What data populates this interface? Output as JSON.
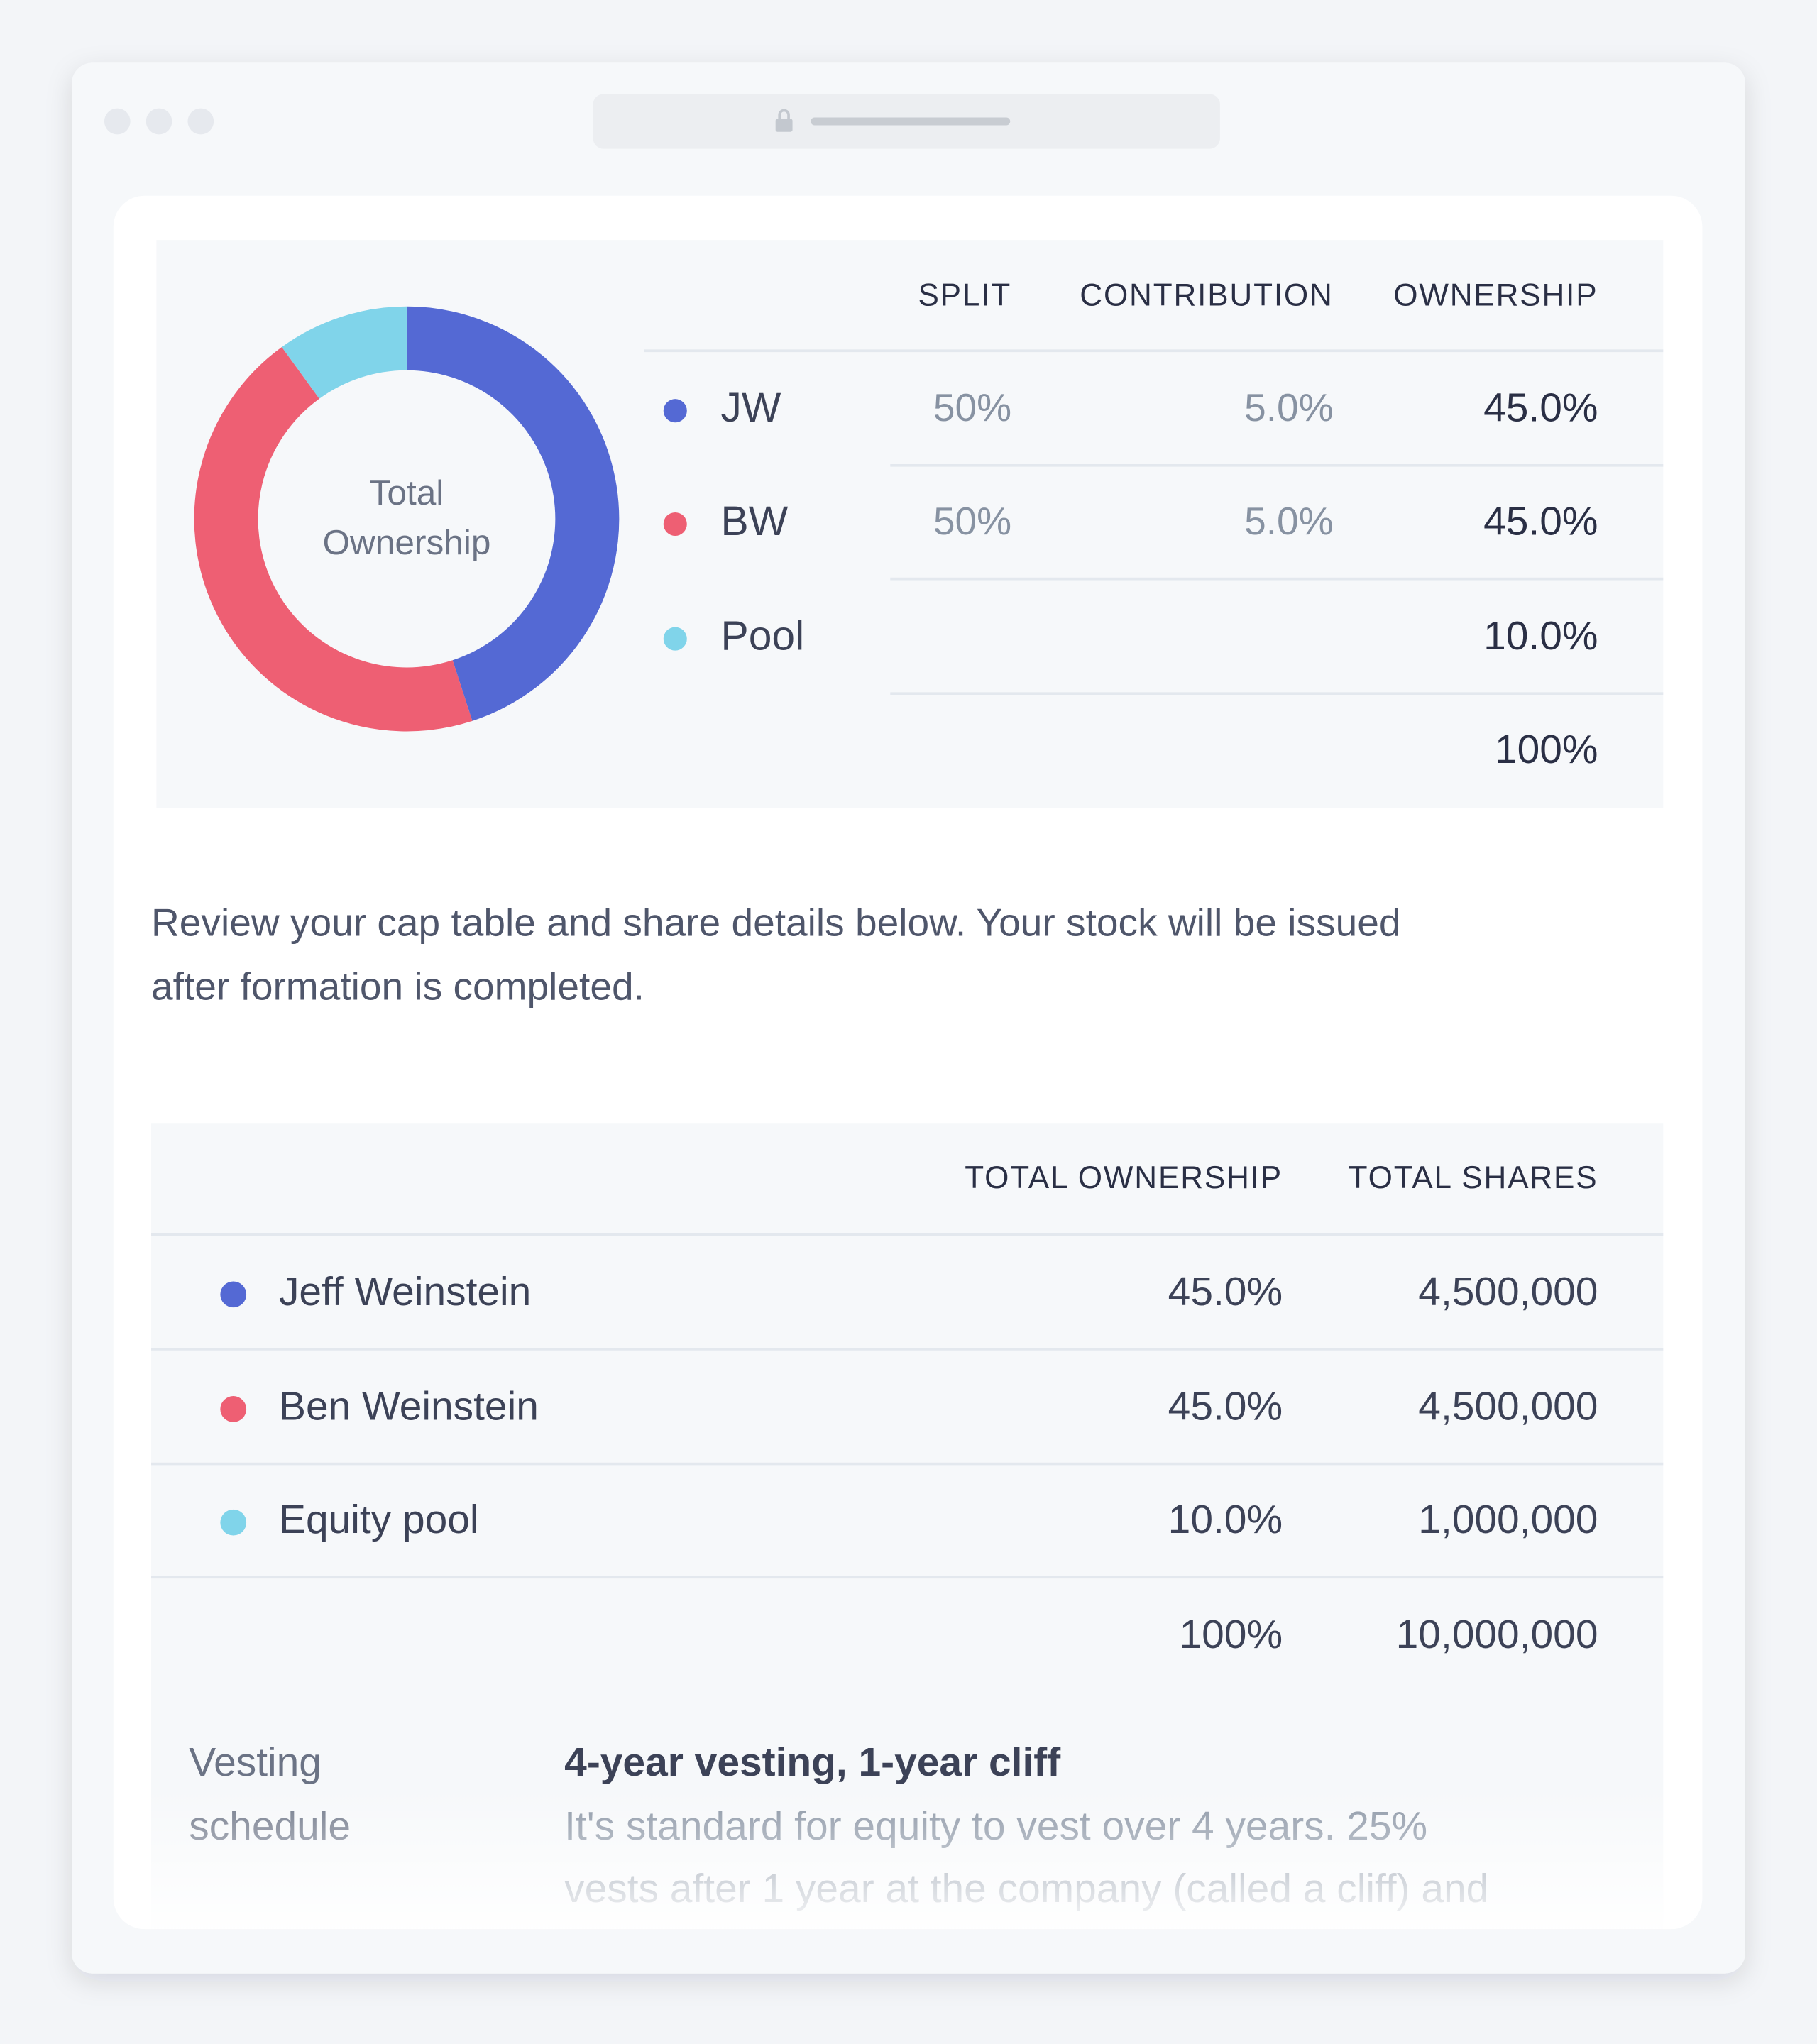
{
  "chart_data": {
    "type": "pie",
    "center_label": [
      "Total",
      "Ownership"
    ],
    "categories": [
      "JW",
      "BW",
      "Pool"
    ],
    "values": [
      45,
      45,
      10
    ],
    "value_labels": [
      "45.0%",
      "45.0%",
      "10.0%"
    ],
    "colors": [
      "#5469d4",
      "#ee5f73",
      "#80d4ea"
    ]
  },
  "summary_table": {
    "headers": [
      "SPLIT",
      "CONTRIBUTION",
      "OWNERSHIP"
    ],
    "rows": [
      [
        "50%",
        "5.0%"
      ],
      [
        "50%",
        "5.0%"
      ],
      []
    ],
    "total": "100%"
  },
  "intro": [
    "Review your cap table and share details below. Your stock will be issued",
    "after formation is completed."
  ],
  "cap_table": {
    "headers": [
      "TOTAL OWNERSHIP",
      "TOTAL SHARES"
    ],
    "rows": [
      [
        "Jeff Weinstein",
        "45.0%",
        "4,500,000"
      ],
      [
        "Ben Weinstein",
        "45.0%",
        "4,500,000"
      ],
      [
        "Equity pool",
        "10.0%",
        "1,000,000"
      ]
    ],
    "total": [
      "100%",
      "10,000,000"
    ]
  },
  "vesting": {
    "label": [
      "Vesting",
      "schedule"
    ],
    "title": "4-year vesting, 1-year cliff",
    "description": [
      "It's standard for equity to vest over 4 years. 25%",
      "vests after 1 year at the company (called a cliff) and"
    ]
  }
}
